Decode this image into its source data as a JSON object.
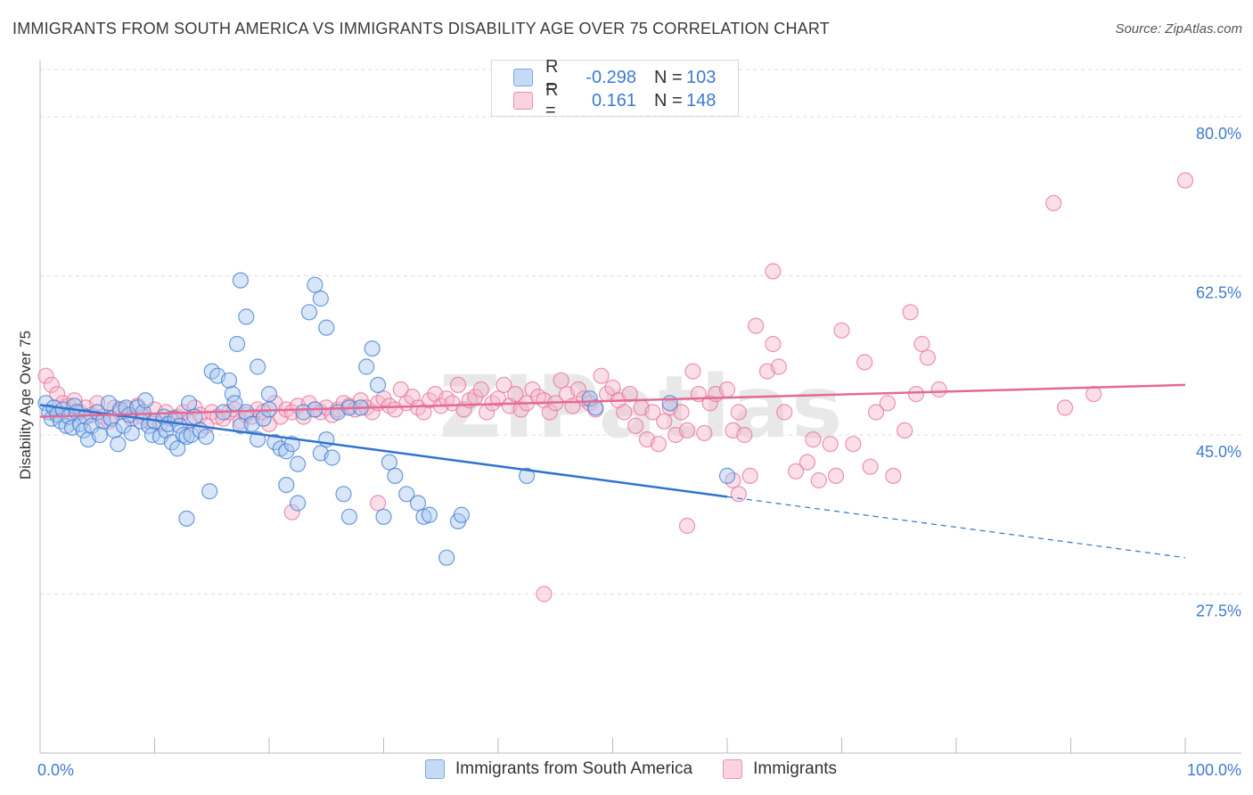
{
  "title": "IMMIGRANTS FROM SOUTH AMERICA VS IMMIGRANTS DISABILITY AGE OVER 75 CORRELATION CHART",
  "source": "Source: ZipAtlas.com",
  "watermark": "ZIPatlas",
  "legend": {
    "rows": [
      {
        "r_label": "R =",
        "r_value": "-0.298",
        "n_label": "N =",
        "n_value": "103",
        "color": "#a9c8f0"
      },
      {
        "r_label": "R =",
        "r_value": "0.161",
        "n_label": "N =",
        "n_value": "148",
        "color": "#f5b8cb"
      }
    ]
  },
  "bottom_legend": [
    {
      "label": "Immigrants from South America",
      "color": "#a9c8f0"
    },
    {
      "label": "Immigrants",
      "color": "#f5b8cb"
    }
  ],
  "chart_data": {
    "type": "scatter",
    "xlabel": "",
    "ylabel": "Disability Age Over 75",
    "xlim": [
      0,
      100
    ],
    "ylim": [
      10,
      85
    ],
    "x_tick_labels": [
      {
        "value": 0,
        "label": "0.0%"
      },
      {
        "value": 100,
        "label": "100.0%"
      }
    ],
    "y_ticks": [
      {
        "value": 27.5,
        "label": "27.5%"
      },
      {
        "value": 45.0,
        "label": "45.0%"
      },
      {
        "value": 62.5,
        "label": "62.5%"
      },
      {
        "value": 80.0,
        "label": "80.0%"
      }
    ],
    "grid": "horizontal dashed",
    "series": [
      {
        "name": "Immigrants from South America",
        "color": "#3d7bd0",
        "fill": "#a9c8f0",
        "trend": {
          "x0": 0,
          "y0": 48.3,
          "x1": 60,
          "y1": 38.2,
          "dash_to_x": 100,
          "dash_to_y": 31.5
        },
        "points": [
          [
            0.5,
            48.5
          ],
          [
            0.8,
            47.5
          ],
          [
            1.0,
            46.8
          ],
          [
            1.2,
            48.0
          ],
          [
            1.5,
            47.2
          ],
          [
            1.8,
            46.5
          ],
          [
            2.0,
            47.8
          ],
          [
            2.3,
            46.0
          ],
          [
            2.5,
            47.0
          ],
          [
            2.8,
            45.8
          ],
          [
            3.0,
            48.2
          ],
          [
            3.2,
            47.5
          ],
          [
            3.5,
            46.2
          ],
          [
            3.8,
            45.5
          ],
          [
            4.0,
            47.0
          ],
          [
            4.2,
            44.5
          ],
          [
            4.5,
            46.0
          ],
          [
            5.0,
            47.5
          ],
          [
            5.2,
            45.0
          ],
          [
            5.5,
            46.5
          ],
          [
            6.0,
            48.5
          ],
          [
            6.2,
            46.8
          ],
          [
            6.5,
            45.5
          ],
          [
            6.8,
            44.0
          ],
          [
            7.0,
            47.8
          ],
          [
            7.3,
            46.0
          ],
          [
            7.5,
            48.0
          ],
          [
            7.8,
            47.2
          ],
          [
            8.0,
            45.2
          ],
          [
            8.5,
            48.0
          ],
          [
            8.8,
            46.5
          ],
          [
            9.0,
            47.5
          ],
          [
            9.2,
            48.8
          ],
          [
            9.5,
            46.0
          ],
          [
            9.8,
            45.0
          ],
          [
            10.0,
            46.5
          ],
          [
            10.5,
            44.8
          ],
          [
            10.8,
            47.0
          ],
          [
            11.0,
            45.5
          ],
          [
            11.2,
            46.2
          ],
          [
            11.5,
            44.2
          ],
          [
            11.8,
            46.8
          ],
          [
            12.0,
            43.5
          ],
          [
            12.2,
            46.0
          ],
          [
            12.5,
            45.0
          ],
          [
            12.8,
            44.8
          ],
          [
            13.0,
            48.5
          ],
          [
            13.2,
            45.0
          ],
          [
            13.5,
            47.0
          ],
          [
            14.0,
            45.5
          ],
          [
            14.5,
            44.8
          ],
          [
            15.0,
            52.0
          ],
          [
            15.5,
            51.5
          ],
          [
            16.0,
            47.5
          ],
          [
            16.5,
            51.0
          ],
          [
            16.8,
            49.5
          ],
          [
            17.0,
            48.5
          ],
          [
            17.5,
            46.0
          ],
          [
            18.0,
            47.5
          ],
          [
            18.5,
            46.2
          ],
          [
            19.0,
            44.5
          ],
          [
            19.5,
            46.8
          ],
          [
            20.0,
            47.8
          ],
          [
            20.5,
            44.2
          ],
          [
            21.0,
            43.5
          ],
          [
            21.5,
            43.2
          ],
          [
            22.0,
            44.0
          ],
          [
            22.5,
            41.8
          ],
          [
            23.0,
            47.5
          ],
          [
            24.0,
            47.8
          ],
          [
            24.5,
            43.0
          ],
          [
            25.0,
            44.5
          ],
          [
            25.5,
            42.5
          ],
          [
            26.0,
            47.5
          ],
          [
            27.0,
            48.0
          ],
          [
            12.8,
            35.8
          ],
          [
            14.8,
            38.8
          ],
          [
            17.5,
            62.0
          ],
          [
            18.0,
            58.0
          ],
          [
            19.0,
            52.5
          ],
          [
            20.0,
            49.5
          ],
          [
            17.2,
            55.0
          ],
          [
            21.5,
            39.5
          ],
          [
            22.5,
            37.5
          ],
          [
            23.5,
            58.5
          ],
          [
            24.0,
            61.5
          ],
          [
            24.5,
            60.0
          ],
          [
            25.0,
            56.8
          ],
          [
            26.5,
            38.5
          ],
          [
            27.0,
            36.0
          ],
          [
            28.0,
            48.0
          ],
          [
            28.5,
            52.5
          ],
          [
            29.0,
            54.5
          ],
          [
            29.5,
            50.5
          ],
          [
            30.0,
            36.0
          ],
          [
            30.5,
            42.0
          ],
          [
            31.0,
            40.5
          ],
          [
            32.0,
            38.5
          ],
          [
            33.0,
            37.5
          ],
          [
            33.5,
            36.0
          ],
          [
            34.0,
            36.2
          ],
          [
            35.5,
            31.5
          ],
          [
            36.5,
            35.5
          ],
          [
            36.8,
            36.2
          ],
          [
            42.5,
            40.5
          ],
          [
            48.0,
            49.0
          ],
          [
            48.5,
            48.0
          ],
          [
            60.0,
            40.5
          ],
          [
            55.0,
            48.5
          ]
        ]
      },
      {
        "name": "Immigrants",
        "color": "#e8709a",
        "fill": "#f5b8cb",
        "trend": {
          "x0": 0,
          "y0": 47.0,
          "x1": 100,
          "y1": 50.5
        },
        "points": [
          [
            0.5,
            51.5
          ],
          [
            1.0,
            50.5
          ],
          [
            1.5,
            49.5
          ],
          [
            2.0,
            48.5
          ],
          [
            2.5,
            48.2
          ],
          [
            3.0,
            48.8
          ],
          [
            3.5,
            47.5
          ],
          [
            4.0,
            48.0
          ],
          [
            4.5,
            47.2
          ],
          [
            5.0,
            48.5
          ],
          [
            5.5,
            47.0
          ],
          [
            6.0,
            46.5
          ],
          [
            6.5,
            48.0
          ],
          [
            7.0,
            47.5
          ],
          [
            7.5,
            47.8
          ],
          [
            8.0,
            46.8
          ],
          [
            8.5,
            48.2
          ],
          [
            9.0,
            47.0
          ],
          [
            9.5,
            46.5
          ],
          [
            10.0,
            47.8
          ],
          [
            10.5,
            46.2
          ],
          [
            11.0,
            47.5
          ],
          [
            11.5,
            46.8
          ],
          [
            12.0,
            47.0
          ],
          [
            12.5,
            47.5
          ],
          [
            13.0,
            46.5
          ],
          [
            13.5,
            48.0
          ],
          [
            14.0,
            47.2
          ],
          [
            14.5,
            46.0
          ],
          [
            15.0,
            47.5
          ],
          [
            15.5,
            47.0
          ],
          [
            16.0,
            46.8
          ],
          [
            16.5,
            47.5
          ],
          [
            17.0,
            47.8
          ],
          [
            17.5,
            46.5
          ],
          [
            18.0,
            47.2
          ],
          [
            18.5,
            47.0
          ],
          [
            19.0,
            47.8
          ],
          [
            19.5,
            47.5
          ],
          [
            20.0,
            46.2
          ],
          [
            20.5,
            48.5
          ],
          [
            21.0,
            47.0
          ],
          [
            21.5,
            47.8
          ],
          [
            22.0,
            47.5
          ],
          [
            22.5,
            48.2
          ],
          [
            23.0,
            47.0
          ],
          [
            23.5,
            48.5
          ],
          [
            24.0,
            47.8
          ],
          [
            24.5,
            47.5
          ],
          [
            25.0,
            48.0
          ],
          [
            25.5,
            47.2
          ],
          [
            26.0,
            47.8
          ],
          [
            26.5,
            48.5
          ],
          [
            27.0,
            48.2
          ],
          [
            27.5,
            47.8
          ],
          [
            28.0,
            48.8
          ],
          [
            28.5,
            48.0
          ],
          [
            29.0,
            47.5
          ],
          [
            29.5,
            48.5
          ],
          [
            30.0,
            49.0
          ],
          [
            30.5,
            48.2
          ],
          [
            31.0,
            47.8
          ],
          [
            31.5,
            50.0
          ],
          [
            32.0,
            48.5
          ],
          [
            32.5,
            49.2
          ],
          [
            33.0,
            48.0
          ],
          [
            33.5,
            47.5
          ],
          [
            34.0,
            48.8
          ],
          [
            34.5,
            49.5
          ],
          [
            35.0,
            48.2
          ],
          [
            35.5,
            49.0
          ],
          [
            36.0,
            48.5
          ],
          [
            36.5,
            50.5
          ],
          [
            37.0,
            47.8
          ],
          [
            37.5,
            48.8
          ],
          [
            38.0,
            49.2
          ],
          [
            38.5,
            50.0
          ],
          [
            39.0,
            47.5
          ],
          [
            39.5,
            48.5
          ],
          [
            40.0,
            49.0
          ],
          [
            40.5,
            50.5
          ],
          [
            41.0,
            48.2
          ],
          [
            41.5,
            49.5
          ],
          [
            42.0,
            47.8
          ],
          [
            42.5,
            48.5
          ],
          [
            43.0,
            50.0
          ],
          [
            43.5,
            49.2
          ],
          [
            44.0,
            48.8
          ],
          [
            44.5,
            47.5
          ],
          [
            45.0,
            48.5
          ],
          [
            45.5,
            51.0
          ],
          [
            46.0,
            49.5
          ],
          [
            46.5,
            48.2
          ],
          [
            47.0,
            50.0
          ],
          [
            47.5,
            49.0
          ],
          [
            48.0,
            48.5
          ],
          [
            48.5,
            47.8
          ],
          [
            49.0,
            51.5
          ],
          [
            49.5,
            49.5
          ],
          [
            50.0,
            50.2
          ],
          [
            50.5,
            48.8
          ],
          [
            51.0,
            47.5
          ],
          [
            51.5,
            49.5
          ],
          [
            52.0,
            46.0
          ],
          [
            52.5,
            48.0
          ],
          [
            53.0,
            44.5
          ],
          [
            53.5,
            47.5
          ],
          [
            54.0,
            44.0
          ],
          [
            54.5,
            46.5
          ],
          [
            55.0,
            48.0
          ],
          [
            55.5,
            45.0
          ],
          [
            56.0,
            47.5
          ],
          [
            56.5,
            45.5
          ],
          [
            57.0,
            52.0
          ],
          [
            57.5,
            49.5
          ],
          [
            58.0,
            45.2
          ],
          [
            58.5,
            48.5
          ],
          [
            59.0,
            49.5
          ],
          [
            60.0,
            50.0
          ],
          [
            60.5,
            45.5
          ],
          [
            61.0,
            47.5
          ],
          [
            61.5,
            45.0
          ],
          [
            62.0,
            40.5
          ],
          [
            62.5,
            57.0
          ],
          [
            63.5,
            52.0
          ],
          [
            64.0,
            55.0
          ],
          [
            64.5,
            52.5
          ],
          [
            65.0,
            47.5
          ],
          [
            66.0,
            41.0
          ],
          [
            67.0,
            42.0
          ],
          [
            68.0,
            40.0
          ],
          [
            69.0,
            44.0
          ],
          [
            70.0,
            56.5
          ],
          [
            71.0,
            44.0
          ],
          [
            72.0,
            53.0
          ],
          [
            73.0,
            47.5
          ],
          [
            74.0,
            48.5
          ],
          [
            75.5,
            45.5
          ],
          [
            76.0,
            58.5
          ],
          [
            77.0,
            55.0
          ],
          [
            22.0,
            36.5
          ],
          [
            29.5,
            37.5
          ],
          [
            44.0,
            27.5
          ],
          [
            60.5,
            40.0
          ],
          [
            56.5,
            35.0
          ],
          [
            64.0,
            63.0
          ],
          [
            67.5,
            44.5
          ],
          [
            74.5,
            40.5
          ],
          [
            77.5,
            53.5
          ],
          [
            88.5,
            70.5
          ],
          [
            92.0,
            49.5
          ],
          [
            100.0,
            73.0
          ],
          [
            61.0,
            38.5
          ],
          [
            69.5,
            40.5
          ],
          [
            72.5,
            41.5
          ],
          [
            76.5,
            49.5
          ],
          [
            78.5,
            50.0
          ],
          [
            89.5,
            48.0
          ]
        ]
      }
    ]
  }
}
